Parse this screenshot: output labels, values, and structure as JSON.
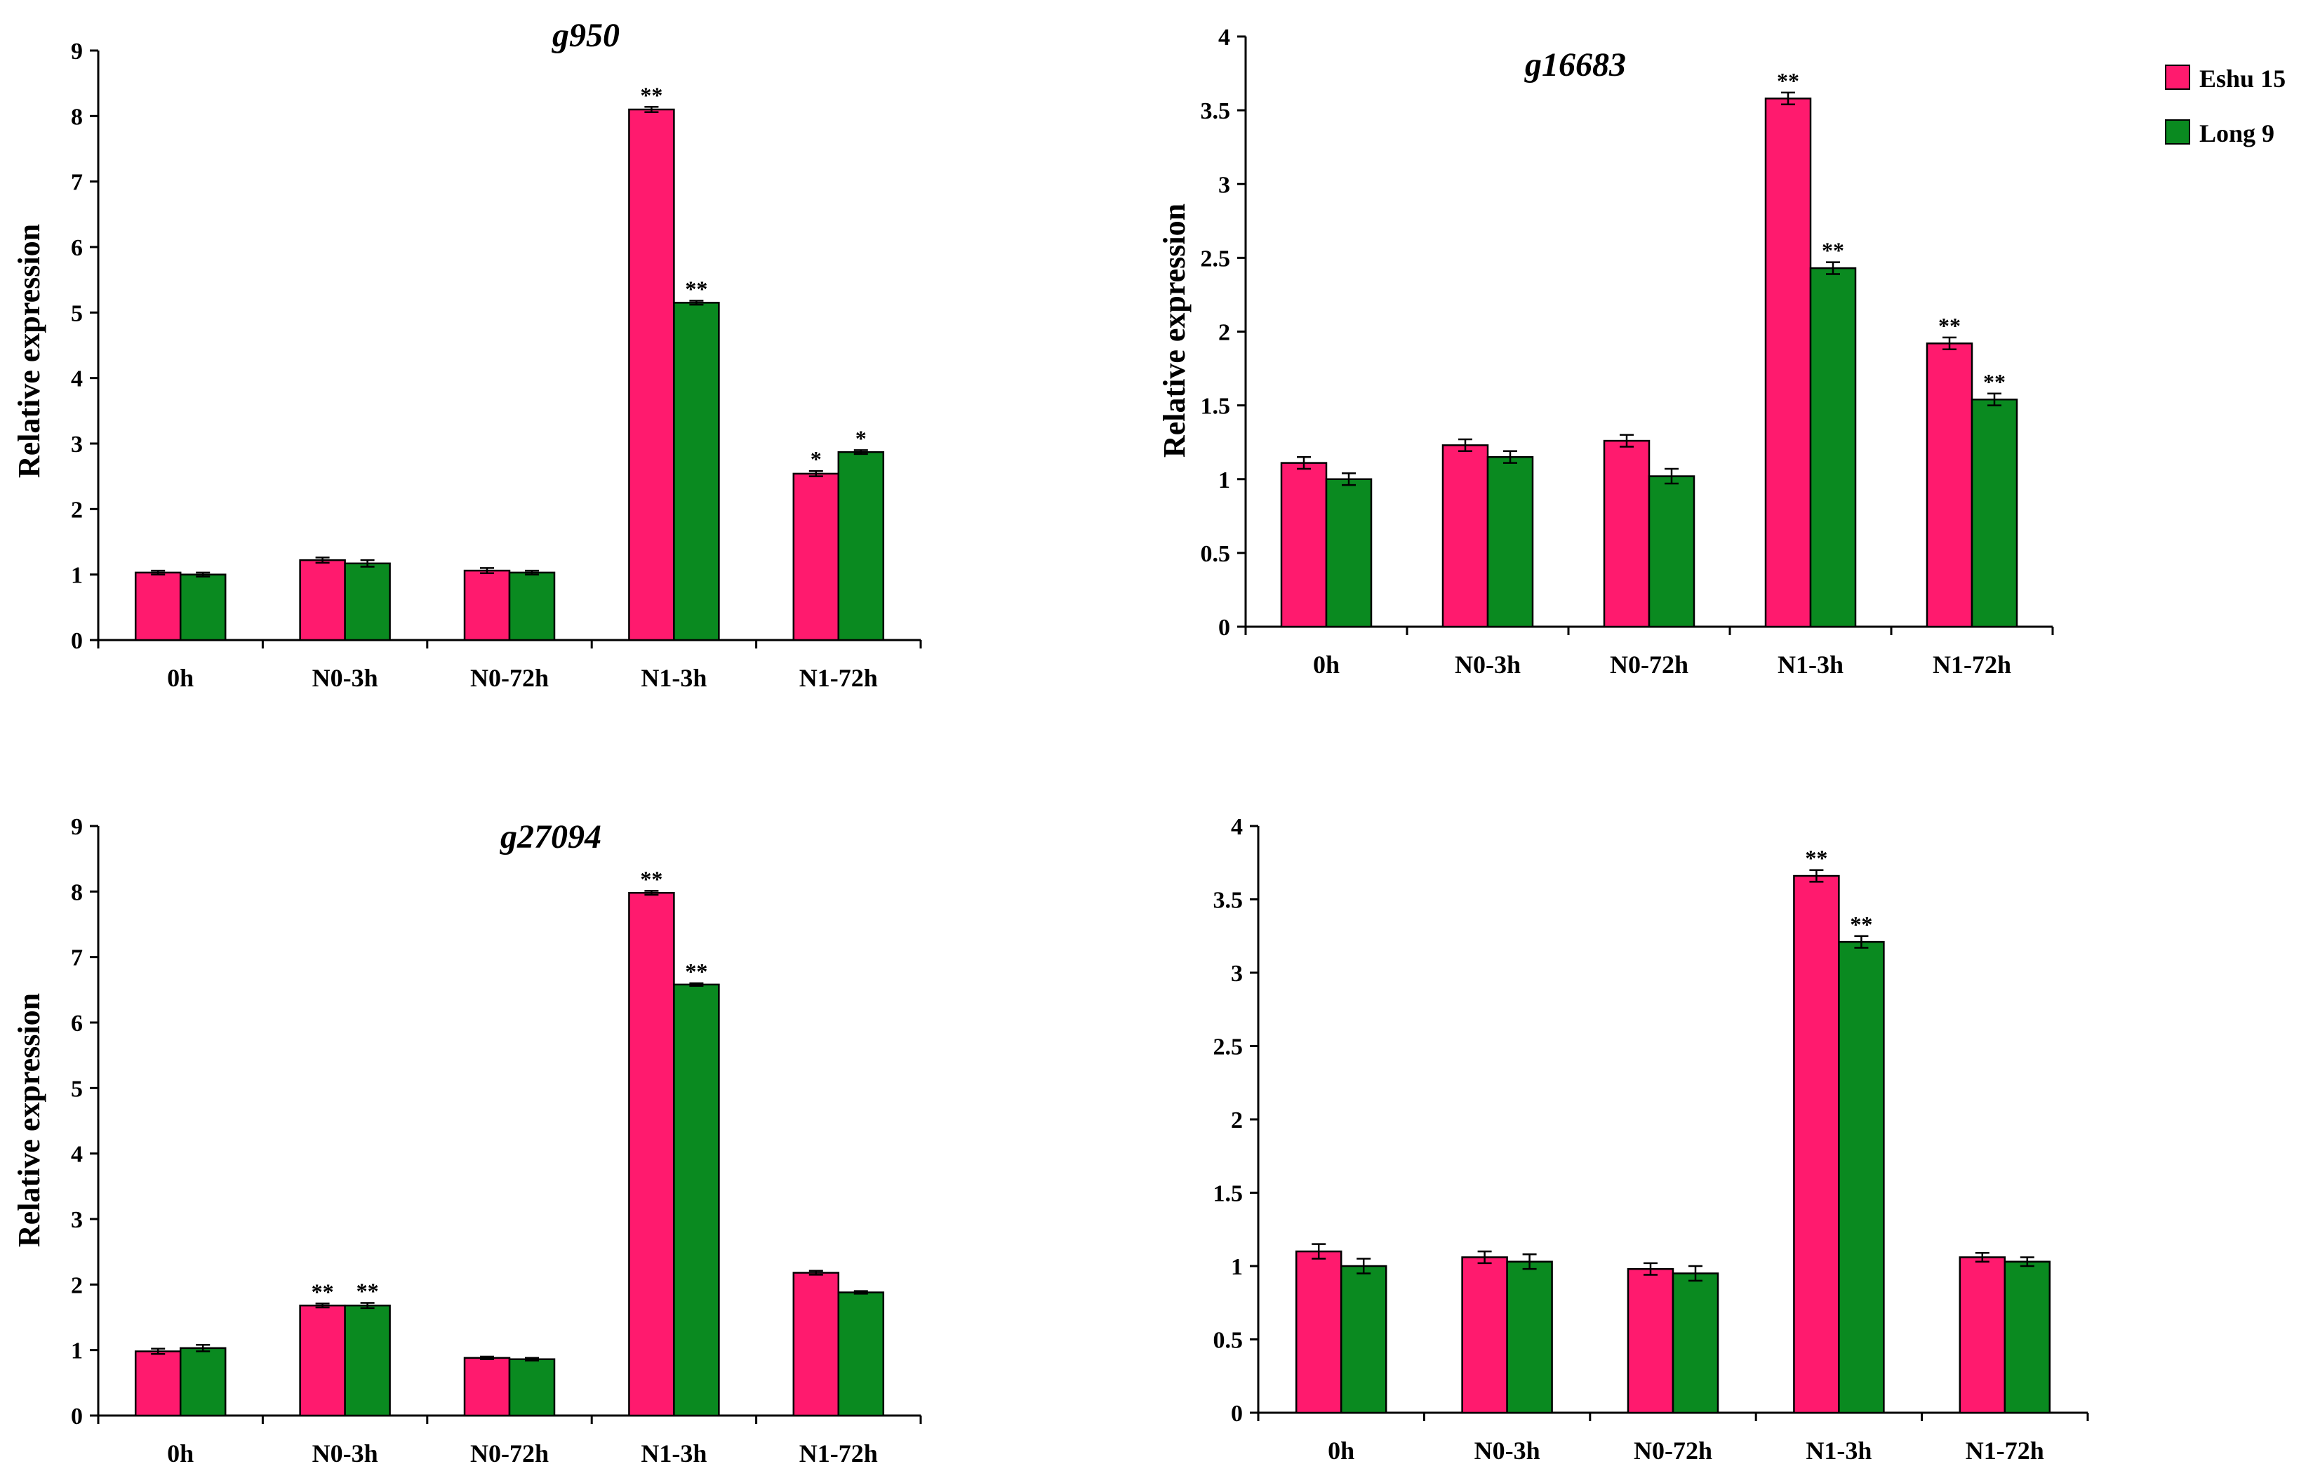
{
  "chart_data": [
    {
      "type": "bar",
      "title": "g950",
      "ylabel": "Relative expression",
      "xlabel": "",
      "ylim": [
        0,
        9
      ],
      "yticks": [
        "0",
        "1",
        "2",
        "3",
        "4",
        "5",
        "6",
        "7",
        "8",
        "9"
      ],
      "categories": [
        "0h",
        "N0-3h",
        "N0-72h",
        "N1-3h",
        "N1-72h"
      ],
      "series": [
        {
          "name": "Eshu 15",
          "values": [
            1.03,
            1.22,
            1.06,
            8.1,
            2.54
          ],
          "errors": [
            0.03,
            0.04,
            0.04,
            0.04,
            0.04
          ],
          "significance": [
            "",
            "",
            "",
            "**",
            "*"
          ]
        },
        {
          "name": "Long 9",
          "values": [
            1.0,
            1.17,
            1.03,
            5.15,
            2.87
          ],
          "errors": [
            0.03,
            0.05,
            0.03,
            0.03,
            0.03
          ],
          "significance": [
            "",
            "",
            "",
            "**",
            "*"
          ]
        }
      ]
    },
    {
      "type": "bar",
      "title": "g16683",
      "ylabel": "Relative expression",
      "xlabel": "",
      "ylim": [
        0,
        4
      ],
      "yticks": [
        "0",
        "0.5",
        "1",
        "1.5",
        "2",
        "2.5",
        "3",
        "3.5",
        "4"
      ],
      "categories": [
        "0h",
        "N0-3h",
        "N0-72h",
        "N1-3h",
        "N1-72h"
      ],
      "series": [
        {
          "name": "Eshu 15",
          "values": [
            1.11,
            1.23,
            1.26,
            3.58,
            1.92
          ],
          "errors": [
            0.04,
            0.04,
            0.04,
            0.04,
            0.04
          ],
          "significance": [
            "",
            "",
            "",
            "**",
            "**"
          ]
        },
        {
          "name": "Long 9",
          "values": [
            1.0,
            1.15,
            1.02,
            2.43,
            1.54
          ],
          "errors": [
            0.04,
            0.04,
            0.05,
            0.04,
            0.04
          ],
          "significance": [
            "",
            "",
            "",
            "**",
            "**"
          ]
        }
      ]
    },
    {
      "type": "bar",
      "title": "g27094",
      "ylabel": "Relative expression",
      "xlabel": "",
      "ylim": [
        0,
        9
      ],
      "yticks": [
        "0",
        "1",
        "2",
        "3",
        "4",
        "5",
        "6",
        "7",
        "8",
        "9"
      ],
      "categories": [
        "0h",
        "N0-3h",
        "N0-72h",
        "N1-3h",
        "N1-72h"
      ],
      "series": [
        {
          "name": "Eshu 15",
          "values": [
            0.98,
            1.68,
            0.88,
            7.98,
            2.18
          ],
          "errors": [
            0.04,
            0.03,
            0.02,
            0.03,
            0.03
          ],
          "significance": [
            "",
            "**",
            "",
            "**",
            ""
          ]
        },
        {
          "name": "Long 9",
          "values": [
            1.03,
            1.68,
            0.86,
            6.58,
            1.88
          ],
          "errors": [
            0.05,
            0.04,
            0.02,
            0.02,
            0.02
          ],
          "significance": [
            "",
            "**",
            "",
            "**",
            ""
          ]
        }
      ]
    },
    {
      "type": "bar",
      "title": "",
      "ylabel": "",
      "xlabel": "",
      "ylim": [
        0,
        4
      ],
      "yticks": [
        "0",
        "0.5",
        "1",
        "1.5",
        "2",
        "2.5",
        "3",
        "3.5",
        "4"
      ],
      "categories": [
        "0h",
        "N0-3h",
        "N0-72h",
        "N1-3h",
        "N1-72h"
      ],
      "series": [
        {
          "name": "Eshu 15",
          "values": [
            1.1,
            1.06,
            0.98,
            3.66,
            1.06
          ],
          "errors": [
            0.05,
            0.04,
            0.04,
            0.04,
            0.03
          ],
          "significance": [
            "",
            "",
            "",
            "**",
            ""
          ]
        },
        {
          "name": "Long 9",
          "values": [
            1.0,
            1.03,
            0.95,
            3.21,
            1.03
          ],
          "errors": [
            0.05,
            0.05,
            0.05,
            0.04,
            0.03
          ],
          "significance": [
            "",
            "",
            "",
            "**",
            ""
          ]
        }
      ]
    }
  ],
  "legend": {
    "items": [
      {
        "label": "Eshu 15",
        "color": "#ff1a6e"
      },
      {
        "label": "Long 9",
        "color": "#0a8a20"
      }
    ]
  },
  "colors": [
    "#ff1a6e",
    "#0a8a20"
  ]
}
